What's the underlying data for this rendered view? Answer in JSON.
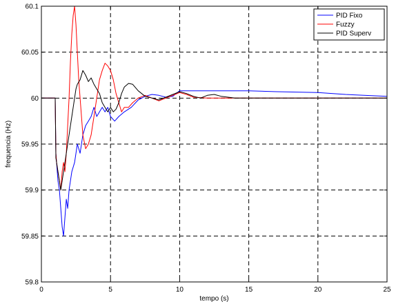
{
  "chart_data": {
    "type": "line",
    "xlabel": "tempo (s)",
    "ylabel": "frequencia (Hz)",
    "xlim": [
      0,
      25
    ],
    "ylim": [
      59.8,
      60.1
    ],
    "xticks": [
      0,
      5,
      10,
      15,
      20,
      25
    ],
    "yticks": [
      59.8,
      59.85,
      59.9,
      59.95,
      60,
      60.05,
      60.1
    ],
    "xtick_labels": [
      "0",
      "5",
      "10",
      "15",
      "20",
      "25"
    ],
    "ytick_labels": [
      "59.8",
      "59.85",
      "59.9",
      "59.95",
      "60",
      "60.05",
      "60.1"
    ],
    "grid": true,
    "legend_position": "top-right",
    "series": [
      {
        "name": "PID Fixo",
        "color": "#0000ff",
        "x": [
          0,
          1.0,
          1.05,
          1.1,
          1.2,
          1.3,
          1.4,
          1.5,
          1.6,
          1.7,
          1.8,
          1.9,
          2.0,
          2.2,
          2.4,
          2.6,
          2.8,
          3.0,
          3.2,
          3.4,
          3.6,
          3.8,
          4.0,
          4.2,
          4.4,
          4.6,
          4.8,
          5.0,
          5.3,
          5.6,
          6.0,
          6.5,
          7.0,
          7.5,
          8.0,
          8.5,
          9.0,
          9.5,
          10.0,
          11.0,
          13.0,
          15.0,
          17.0,
          20.0,
          22.0,
          25.0
        ],
        "y": [
          60.0,
          60.0,
          59.94,
          59.93,
          59.91,
          59.9,
          59.88,
          59.86,
          59.85,
          59.87,
          59.89,
          59.88,
          59.9,
          59.92,
          59.93,
          59.95,
          59.94,
          59.96,
          59.97,
          59.975,
          59.98,
          59.99,
          59.98,
          59.985,
          59.99,
          59.985,
          59.99,
          59.98,
          59.975,
          59.98,
          59.985,
          59.99,
          59.998,
          60.002,
          60.004,
          60.003,
          60.001,
          60.002,
          60.008,
          60.008,
          60.008,
          60.008,
          60.007,
          60.006,
          60.004,
          60.002
        ]
      },
      {
        "name": "Fuzzy",
        "color": "#ff0000",
        "x": [
          0,
          1.0,
          1.05,
          1.1,
          1.2,
          1.3,
          1.4,
          1.5,
          1.6,
          1.7,
          1.8,
          1.9,
          2.0,
          2.1,
          2.2,
          2.3,
          2.4,
          2.5,
          2.6,
          2.7,
          2.8,
          2.9,
          3.0,
          3.2,
          3.4,
          3.6,
          3.8,
          4.0,
          4.2,
          4.4,
          4.6,
          4.8,
          5.0,
          5.2,
          5.4,
          5.6,
          5.8,
          6.0,
          6.3,
          6.6,
          7.0,
          7.5,
          8.0,
          8.5,
          9.0,
          9.5,
          10.0,
          10.5,
          11.0,
          12.0,
          14.0,
          17.0,
          20.0,
          25.0
        ],
        "y": [
          60.0,
          60.0,
          59.94,
          59.93,
          59.92,
          59.91,
          59.9,
          59.92,
          59.93,
          59.92,
          59.94,
          59.97,
          60.0,
          60.04,
          60.07,
          60.09,
          60.1,
          60.08,
          60.05,
          60.02,
          60.0,
          59.98,
          59.96,
          59.945,
          59.95,
          59.96,
          59.98,
          60.0,
          60.02,
          60.03,
          60.038,
          60.035,
          60.03,
          60.02,
          60.005,
          59.995,
          59.985,
          59.99,
          59.99,
          59.995,
          60.0,
          60.003,
          60.0,
          59.997,
          60.0,
          60.003,
          60.006,
          60.004,
          60.001,
          60.0,
          60.0,
          60.0,
          60.0,
          60.0
        ]
      },
      {
        "name": "PID Superv",
        "color": "#000000",
        "x": [
          0,
          1.0,
          1.05,
          1.1,
          1.2,
          1.3,
          1.4,
          1.5,
          1.6,
          1.7,
          1.8,
          1.9,
          2.0,
          2.1,
          2.2,
          2.3,
          2.4,
          2.5,
          2.6,
          2.8,
          3.0,
          3.2,
          3.4,
          3.6,
          3.8,
          4.0,
          4.2,
          4.4,
          4.6,
          4.8,
          5.0,
          5.2,
          5.4,
          5.6,
          5.8,
          6.0,
          6.3,
          6.6,
          7.0,
          7.5,
          8.0,
          8.5,
          9.0,
          9.5,
          10.0,
          10.5,
          11.0,
          11.5,
          12.0,
          12.5,
          13.0,
          13.5,
          14.0,
          15.0,
          17.0,
          20.0,
          25.0
        ],
        "y": [
          60.0,
          60.0,
          59.935,
          59.93,
          59.92,
          59.91,
          59.9,
          59.91,
          59.92,
          59.93,
          59.94,
          59.95,
          59.96,
          59.97,
          59.98,
          59.99,
          60.0,
          60.01,
          60.015,
          60.02,
          60.03,
          60.025,
          60.018,
          60.022,
          60.015,
          60.01,
          60.005,
          59.995,
          59.99,
          59.985,
          59.99,
          59.985,
          59.988,
          59.995,
          60.005,
          60.012,
          60.016,
          60.015,
          60.008,
          60.002,
          60.0,
          59.998,
          60.001,
          60.004,
          60.007,
          60.005,
          60.002,
          60.0,
          60.003,
          60.004,
          60.002,
          60.001,
          60.0,
          60.0,
          60.0,
          60.0,
          60.0
        ]
      }
    ]
  }
}
